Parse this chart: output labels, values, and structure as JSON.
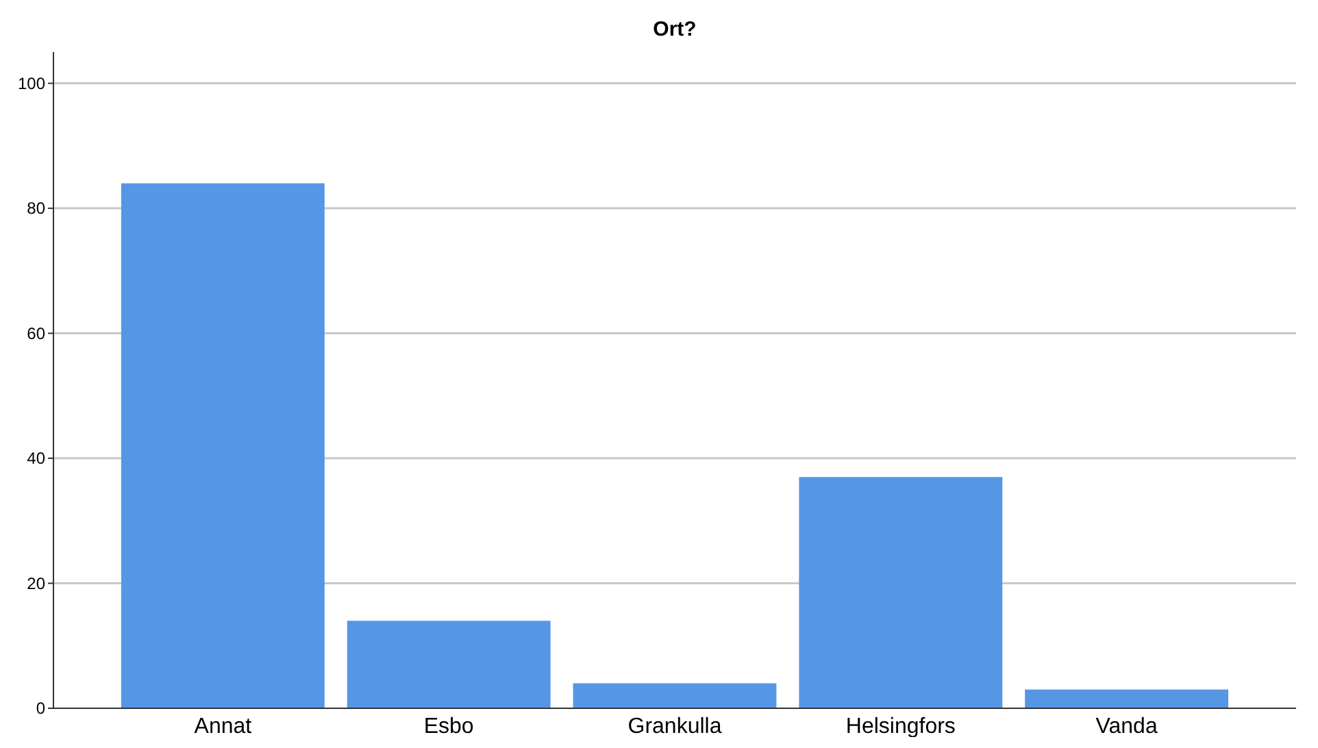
{
  "chart_data": {
    "type": "bar",
    "title": "Ort?",
    "categories": [
      "Annat",
      "Esbo",
      "Grankulla",
      "Helsingfors",
      "Vanda"
    ],
    "values": [
      84,
      14,
      4,
      37,
      3
    ],
    "color": "#5596e5",
    "ylim": [
      0,
      105
    ],
    "yticks": [
      0,
      20,
      40,
      60,
      80,
      100
    ],
    "grid": "y"
  }
}
